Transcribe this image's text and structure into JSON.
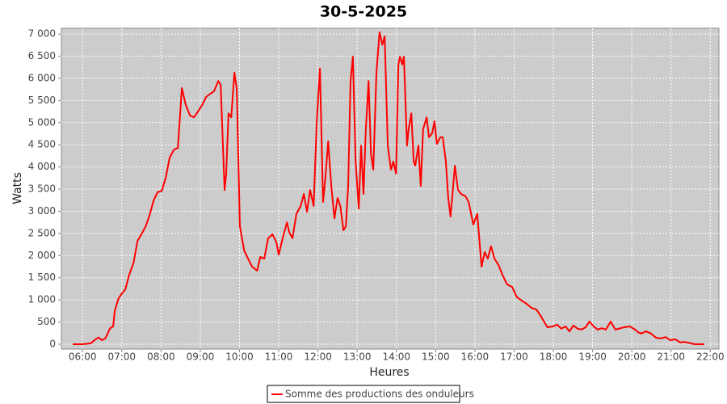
{
  "chart_data": {
    "type": "line",
    "title": "30-5-2025",
    "x_label": "Heures",
    "y_label": "Watts",
    "x": [
      5.75,
      6.0,
      6.21,
      6.33,
      6.41,
      6.49,
      6.58,
      6.64,
      6.7,
      6.78,
      6.82,
      6.91,
      6.99,
      7.09,
      7.19,
      7.3,
      7.4,
      7.5,
      7.61,
      7.71,
      7.81,
      7.91,
      8.02,
      8.12,
      8.22,
      8.33,
      8.43,
      8.53,
      8.63,
      8.74,
      8.84,
      8.94,
      9.05,
      9.15,
      9.25,
      9.35,
      9.46,
      9.52,
      9.62,
      9.66,
      9.72,
      9.79,
      9.87,
      9.93,
      10.01,
      10.12,
      10.22,
      10.32,
      10.45,
      10.53,
      10.63,
      10.73,
      10.84,
      10.94,
      11.0,
      11.1,
      11.21,
      11.27,
      11.35,
      11.45,
      11.56,
      11.64,
      11.72,
      11.8,
      11.89,
      11.97,
      12.05,
      12.13,
      12.19,
      12.26,
      12.34,
      12.42,
      12.5,
      12.57,
      12.65,
      12.71,
      12.77,
      12.83,
      12.89,
      12.96,
      13.04,
      13.1,
      13.16,
      13.22,
      13.29,
      13.35,
      13.41,
      13.49,
      13.57,
      13.64,
      13.7,
      13.78,
      13.86,
      13.92,
      13.99,
      14.05,
      14.09,
      14.15,
      14.19,
      14.27,
      14.31,
      14.38,
      14.44,
      14.48,
      14.56,
      14.62,
      14.68,
      14.77,
      14.83,
      14.91,
      14.97,
      15.03,
      15.12,
      15.18,
      15.26,
      15.32,
      15.38,
      15.49,
      15.57,
      15.65,
      15.76,
      15.84,
      15.96,
      16.06,
      16.17,
      16.25,
      16.33,
      16.41,
      16.5,
      16.6,
      16.7,
      16.82,
      16.95,
      17.07,
      17.2,
      17.32,
      17.44,
      17.57,
      17.69,
      17.85,
      17.98,
      18.1,
      18.2,
      18.31,
      18.41,
      18.51,
      18.62,
      18.72,
      18.82,
      18.92,
      19.03,
      19.13,
      19.23,
      19.34,
      19.46,
      19.58,
      19.71,
      19.79,
      19.95,
      20.08,
      20.16,
      20.24,
      20.36,
      20.49,
      20.61,
      20.74,
      20.86,
      20.98,
      21.11,
      21.23,
      21.35,
      21.5,
      21.6,
      21.85
    ],
    "series": [
      {
        "name": "Somme des productions des onduleurs",
        "color": "#ff0000",
        "values": [
          0,
          0,
          20,
          110,
          150,
          90,
          130,
          240,
          360,
          400,
          750,
          1020,
          1130,
          1240,
          1570,
          1840,
          2330,
          2480,
          2660,
          2920,
          3240,
          3430,
          3460,
          3760,
          4210,
          4390,
          4430,
          5780,
          5400,
          5160,
          5120,
          5250,
          5400,
          5580,
          5650,
          5710,
          5940,
          5850,
          3480,
          3850,
          5210,
          5120,
          6130,
          5760,
          2660,
          2110,
          1930,
          1750,
          1660,
          1970,
          1930,
          2390,
          2480,
          2300,
          2020,
          2390,
          2750,
          2520,
          2390,
          2940,
          3120,
          3390,
          2990,
          3480,
          3120,
          5030,
          6220,
          3210,
          3760,
          4580,
          3570,
          2840,
          3300,
          3120,
          2570,
          2660,
          3570,
          5940,
          6490,
          4120,
          3060,
          4480,
          3390,
          4850,
          5940,
          4300,
          3940,
          6130,
          7040,
          6760,
          6950,
          4480,
          3940,
          4120,
          3850,
          6310,
          6490,
          6310,
          6490,
          4480,
          4850,
          5210,
          4120,
          4030,
          4480,
          3570,
          4850,
          5120,
          4670,
          4760,
          5030,
          4520,
          4670,
          4670,
          4120,
          3300,
          2880,
          4030,
          3480,
          3390,
          3340,
          3210,
          2700,
          2940,
          1750,
          2080,
          1930,
          2210,
          1930,
          1790,
          1570,
          1350,
          1290,
          1060,
          980,
          910,
          820,
          780,
          620,
          380,
          400,
          440,
          350,
          400,
          290,
          420,
          350,
          330,
          380,
          510,
          400,
          330,
          360,
          330,
          510,
          330,
          360,
          380,
          400,
          330,
          270,
          240,
          290,
          240,
          150,
          130,
          160,
          90,
          110,
          40,
          50,
          20,
          0,
          0
        ]
      }
    ],
    "xlim": [
      5.46,
      22.22
    ],
    "xticks": [
      {
        "value": 6,
        "label": "06:00"
      },
      {
        "value": 7,
        "label": "07:00"
      },
      {
        "value": 8,
        "label": "08:00"
      },
      {
        "value": 9,
        "label": "09:00"
      },
      {
        "value": 10,
        "label": "10:00"
      },
      {
        "value": 11,
        "label": "11:00"
      },
      {
        "value": 12,
        "label": "12:00"
      },
      {
        "value": 13,
        "label": "13:00"
      },
      {
        "value": 14,
        "label": "14:00"
      },
      {
        "value": 15,
        "label": "15:00"
      },
      {
        "value": 16,
        "label": "16:00"
      },
      {
        "value": 17,
        "label": "17:00"
      },
      {
        "value": 18,
        "label": "18:00"
      },
      {
        "value": 19,
        "label": "19:00"
      },
      {
        "value": 20,
        "label": "20:00"
      },
      {
        "value": 21,
        "label": "21:00"
      },
      {
        "value": 22,
        "label": "22:00"
      }
    ],
    "ylim": [
      -110,
      7130
    ],
    "yticks": [
      0,
      500,
      {
        "value": 1000,
        "label": "1 000"
      },
      {
        "value": 1500,
        "label": "1 500"
      },
      {
        "value": 2000,
        "label": "2 000"
      },
      {
        "value": 2500,
        "label": "2 500"
      },
      {
        "value": 3000,
        "label": "3 000"
      },
      {
        "value": 3500,
        "label": "3 500"
      },
      {
        "value": 4000,
        "label": "4 000"
      },
      {
        "value": 4500,
        "label": "4 500"
      },
      {
        "value": 5000,
        "label": "5 000"
      },
      {
        "value": 5500,
        "label": "5 500"
      },
      {
        "value": 6000,
        "label": "6 000"
      },
      {
        "value": 6500,
        "label": "6 500"
      },
      {
        "value": 7000,
        "label": "7 000"
      }
    ],
    "grid": true,
    "legend": "bottom"
  }
}
